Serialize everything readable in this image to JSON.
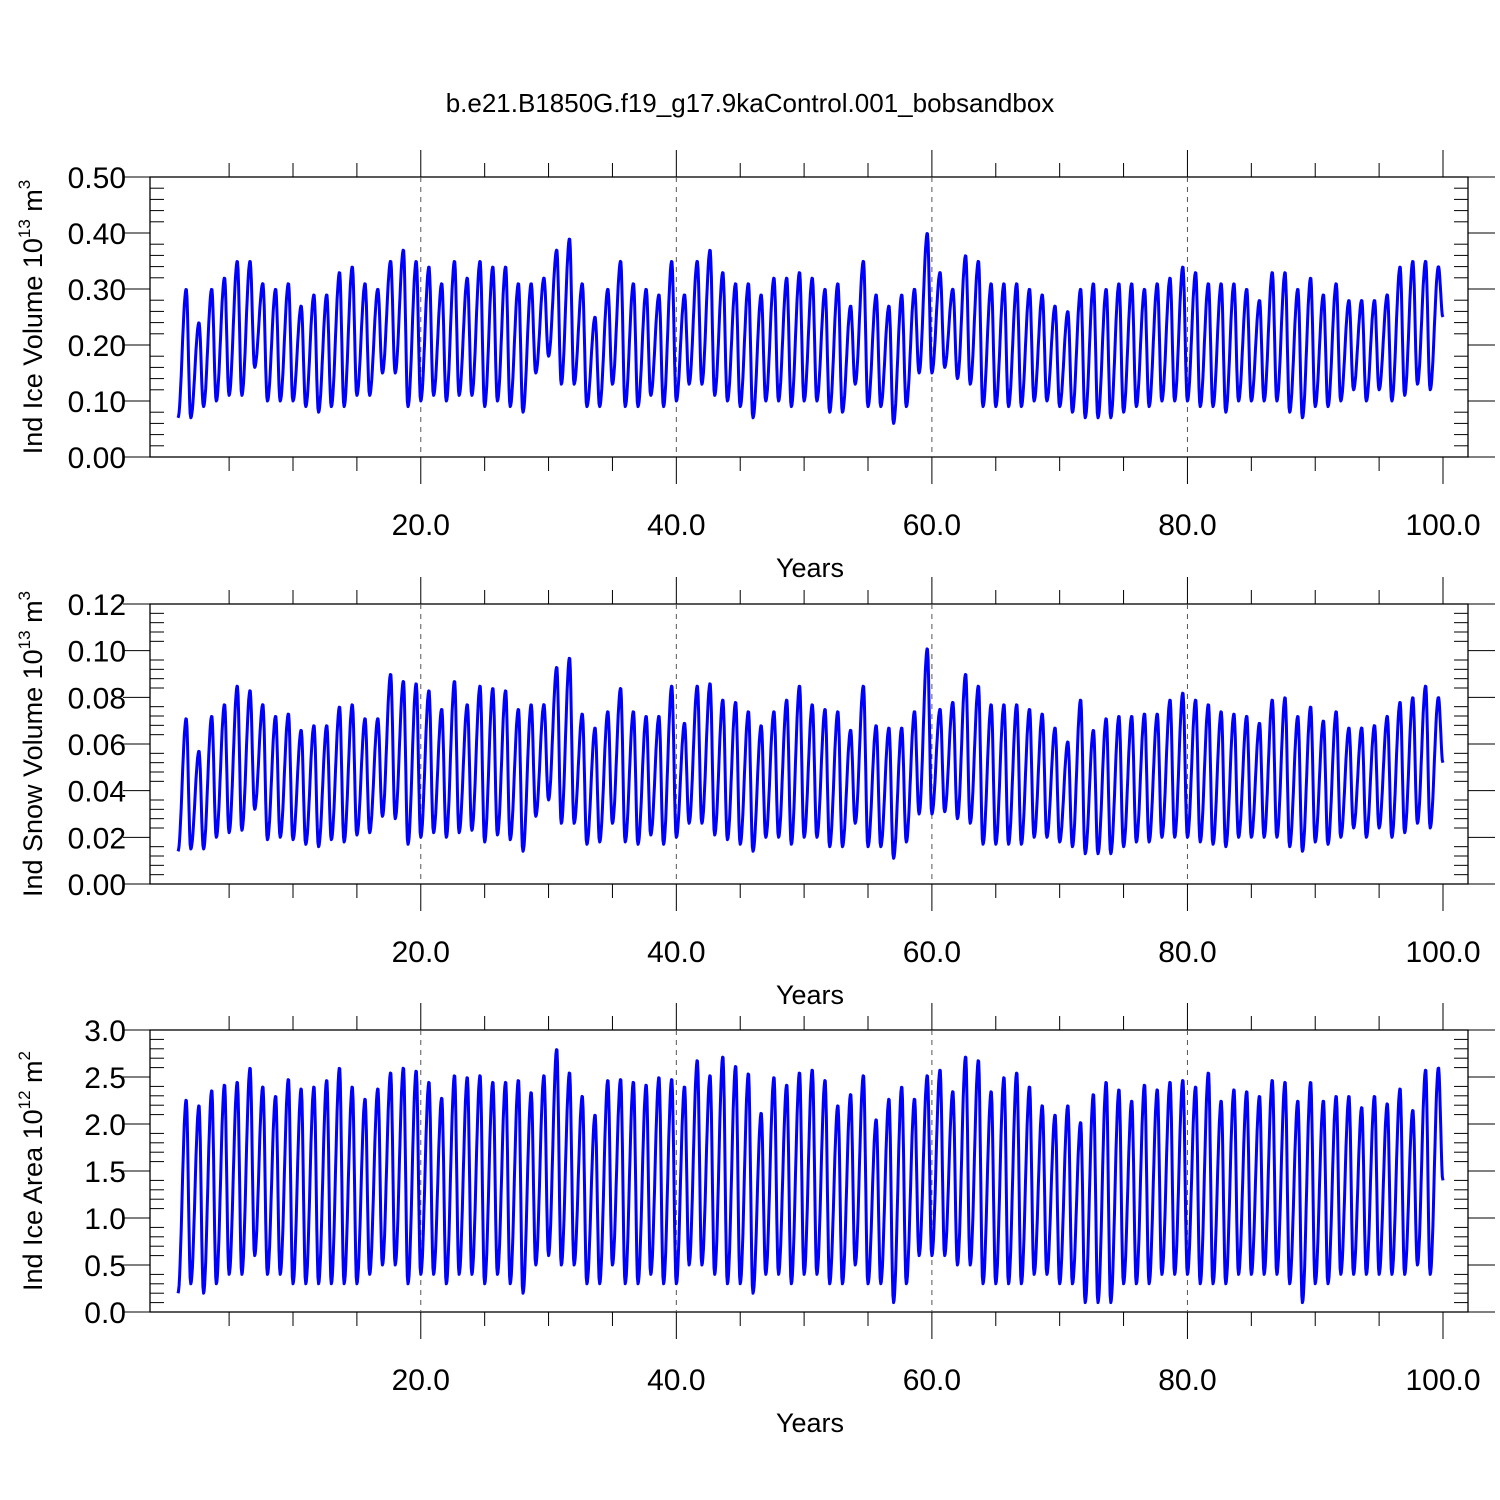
{
  "title": "b.e21.B1850G.f19_g17.9kaControl.001_bobsandbox",
  "chart_data": [
    {
      "type": "line",
      "name": "ice-volume",
      "ylabel": {
        "text": "Ind Ice Volume 10",
        "exp": "13",
        "unit": " m",
        "unit_exp": "3"
      },
      "xlabel": "Years",
      "xlim": [
        1,
        100
      ],
      "ylim": [
        0,
        0.5
      ],
      "grid": "x-dashed",
      "x_ticks": [
        "20.0",
        "40.0",
        "60.0",
        "80.0",
        "100.0"
      ],
      "y_ticks": [
        "0.00",
        "0.10",
        "0.20",
        "0.30",
        "0.40",
        "0.50"
      ],
      "color": "#0000ff",
      "seasonal_minima": [
        0.07,
        0.07,
        0.09,
        0.1,
        0.11,
        0.11,
        0.16,
        0.1,
        0.1,
        0.1,
        0.09,
        0.08,
        0.09,
        0.09,
        0.11,
        0.11,
        0.15,
        0.15,
        0.09,
        0.1,
        0.11,
        0.1,
        0.11,
        0.11,
        0.09,
        0.1,
        0.09,
        0.08,
        0.15,
        0.18,
        0.13,
        0.13,
        0.09,
        0.09,
        0.13,
        0.09,
        0.09,
        0.11,
        0.09,
        0.1,
        0.13,
        0.13,
        0.11,
        0.1,
        0.09,
        0.07,
        0.1,
        0.1,
        0.09,
        0.1,
        0.1,
        0.08,
        0.08,
        0.13,
        0.09,
        0.09,
        0.06,
        0.09,
        0.15,
        0.15,
        0.16,
        0.14,
        0.13,
        0.09,
        0.09,
        0.09,
        0.09,
        0.1,
        0.1,
        0.09,
        0.08,
        0.07,
        0.07,
        0.07,
        0.08,
        0.09,
        0.09,
        0.1,
        0.1,
        0.1,
        0.09,
        0.09,
        0.08,
        0.1,
        0.1,
        0.1,
        0.1,
        0.08,
        0.07,
        0.09,
        0.09,
        0.1,
        0.12,
        0.1,
        0.12,
        0.1,
        0.11,
        0.13,
        0.12,
        0.25
      ],
      "seasonal_maxima": [
        0.3,
        0.24,
        0.3,
        0.32,
        0.35,
        0.35,
        0.31,
        0.3,
        0.31,
        0.27,
        0.29,
        0.29,
        0.33,
        0.34,
        0.31,
        0.3,
        0.35,
        0.37,
        0.35,
        0.34,
        0.31,
        0.35,
        0.32,
        0.35,
        0.34,
        0.34,
        0.31,
        0.31,
        0.32,
        0.37,
        0.39,
        0.31,
        0.25,
        0.3,
        0.35,
        0.31,
        0.3,
        0.29,
        0.35,
        0.29,
        0.35,
        0.37,
        0.33,
        0.31,
        0.31,
        0.29,
        0.32,
        0.32,
        0.33,
        0.32,
        0.3,
        0.31,
        0.27,
        0.35,
        0.29,
        0.27,
        0.29,
        0.3,
        0.4,
        0.33,
        0.3,
        0.36,
        0.35,
        0.31,
        0.31,
        0.31,
        0.3,
        0.29,
        0.27,
        0.26,
        0.3,
        0.31,
        0.3,
        0.31,
        0.31,
        0.3,
        0.31,
        0.32,
        0.34,
        0.33,
        0.31,
        0.31,
        0.31,
        0.3,
        0.28,
        0.33,
        0.33,
        0.3,
        0.32,
        0.29,
        0.31,
        0.28,
        0.28,
        0.28,
        0.29,
        0.34,
        0.35,
        0.35,
        0.34,
        0.35
      ]
    },
    {
      "type": "line",
      "name": "snow-volume",
      "ylabel": {
        "text": "Ind Snow Volume 10",
        "exp": "13",
        "unit": " m",
        "unit_exp": "3"
      },
      "xlabel": "Years",
      "xlim": [
        1,
        100
      ],
      "ylim": [
        0,
        0.12
      ],
      "grid": "x-dashed",
      "x_ticks": [
        "20.0",
        "40.0",
        "60.0",
        "80.0",
        "100.0"
      ],
      "y_ticks": [
        "0.00",
        "0.02",
        "0.04",
        "0.06",
        "0.08",
        "0.10",
        "0.12"
      ],
      "color": "#0000ff",
      "seasonal_minima": [
        0.014,
        0.015,
        0.015,
        0.02,
        0.022,
        0.023,
        0.032,
        0.019,
        0.02,
        0.019,
        0.017,
        0.016,
        0.019,
        0.018,
        0.021,
        0.022,
        0.029,
        0.028,
        0.017,
        0.02,
        0.022,
        0.02,
        0.022,
        0.023,
        0.018,
        0.021,
        0.019,
        0.014,
        0.029,
        0.036,
        0.026,
        0.026,
        0.017,
        0.018,
        0.026,
        0.018,
        0.017,
        0.021,
        0.017,
        0.02,
        0.026,
        0.026,
        0.021,
        0.019,
        0.017,
        0.014,
        0.02,
        0.02,
        0.017,
        0.02,
        0.02,
        0.016,
        0.016,
        0.026,
        0.016,
        0.016,
        0.011,
        0.018,
        0.03,
        0.03,
        0.031,
        0.028,
        0.026,
        0.017,
        0.017,
        0.017,
        0.017,
        0.02,
        0.02,
        0.018,
        0.016,
        0.013,
        0.013,
        0.013,
        0.016,
        0.018,
        0.018,
        0.02,
        0.02,
        0.02,
        0.018,
        0.017,
        0.016,
        0.02,
        0.02,
        0.02,
        0.02,
        0.016,
        0.014,
        0.018,
        0.017,
        0.02,
        0.024,
        0.02,
        0.024,
        0.02,
        0.022,
        0.026,
        0.024,
        0.052
      ],
      "seasonal_maxima": [
        0.071,
        0.057,
        0.072,
        0.077,
        0.085,
        0.083,
        0.077,
        0.072,
        0.073,
        0.066,
        0.068,
        0.068,
        0.076,
        0.077,
        0.071,
        0.071,
        0.09,
        0.087,
        0.086,
        0.083,
        0.075,
        0.087,
        0.077,
        0.085,
        0.084,
        0.083,
        0.075,
        0.077,
        0.077,
        0.093,
        0.097,
        0.073,
        0.067,
        0.074,
        0.084,
        0.074,
        0.072,
        0.072,
        0.085,
        0.069,
        0.085,
        0.086,
        0.079,
        0.078,
        0.074,
        0.068,
        0.074,
        0.079,
        0.085,
        0.077,
        0.075,
        0.074,
        0.066,
        0.085,
        0.068,
        0.067,
        0.067,
        0.074,
        0.101,
        0.075,
        0.078,
        0.09,
        0.085,
        0.077,
        0.077,
        0.077,
        0.075,
        0.073,
        0.067,
        0.061,
        0.079,
        0.066,
        0.071,
        0.072,
        0.072,
        0.073,
        0.073,
        0.079,
        0.082,
        0.079,
        0.077,
        0.074,
        0.073,
        0.072,
        0.069,
        0.079,
        0.08,
        0.072,
        0.076,
        0.07,
        0.074,
        0.067,
        0.067,
        0.068,
        0.072,
        0.078,
        0.08,
        0.085,
        0.08,
        0.085
      ]
    },
    {
      "type": "line",
      "name": "ice-area",
      "ylabel": {
        "text": "Ind Ice Area 10",
        "exp": "12",
        "unit": " m",
        "unit_exp": "2"
      },
      "xlabel": "Years",
      "xlim": [
        1,
        100
      ],
      "ylim": [
        0,
        3
      ],
      "grid": "x-dashed",
      "x_ticks": [
        "20.0",
        "40.0",
        "60.0",
        "80.0",
        "100.0"
      ],
      "y_ticks": [
        "0.0",
        "0.5",
        "1.0",
        "1.5",
        "2.0",
        "2.5",
        "3.0"
      ],
      "color": "#0000ff",
      "seasonal_minima": [
        0.2,
        0.3,
        0.2,
        0.3,
        0.4,
        0.4,
        0.6,
        0.4,
        0.4,
        0.3,
        0.3,
        0.3,
        0.3,
        0.3,
        0.3,
        0.4,
        0.5,
        0.5,
        0.3,
        0.4,
        0.4,
        0.3,
        0.4,
        0.4,
        0.3,
        0.4,
        0.3,
        0.2,
        0.5,
        0.6,
        0.5,
        0.5,
        0.3,
        0.3,
        0.5,
        0.3,
        0.3,
        0.4,
        0.3,
        0.3,
        0.5,
        0.5,
        0.4,
        0.3,
        0.3,
        0.2,
        0.4,
        0.4,
        0.3,
        0.4,
        0.4,
        0.3,
        0.3,
        0.5,
        0.3,
        0.3,
        0.1,
        0.3,
        0.6,
        0.6,
        0.6,
        0.5,
        0.5,
        0.3,
        0.3,
        0.3,
        0.3,
        0.4,
        0.4,
        0.3,
        0.3,
        0.1,
        0.1,
        0.1,
        0.3,
        0.3,
        0.3,
        0.4,
        0.4,
        0.4,
        0.3,
        0.3,
        0.3,
        0.4,
        0.4,
        0.4,
        0.4,
        0.3,
        0.1,
        0.3,
        0.3,
        0.4,
        0.4,
        0.4,
        0.4,
        0.4,
        0.4,
        0.5,
        0.4,
        1.4
      ],
      "seasonal_maxima": [
        2.26,
        2.2,
        2.36,
        2.42,
        2.45,
        2.6,
        2.4,
        2.3,
        2.48,
        2.38,
        2.4,
        2.47,
        2.6,
        2.4,
        2.27,
        2.38,
        2.55,
        2.6,
        2.57,
        2.45,
        2.28,
        2.52,
        2.5,
        2.52,
        2.45,
        2.45,
        2.47,
        2.34,
        2.52,
        2.8,
        2.55,
        2.3,
        2.1,
        2.47,
        2.48,
        2.45,
        2.42,
        2.5,
        2.48,
        2.4,
        2.68,
        2.52,
        2.72,
        2.62,
        2.54,
        2.12,
        2.5,
        2.42,
        2.55,
        2.58,
        2.47,
        2.2,
        2.32,
        2.52,
        2.05,
        2.27,
        2.4,
        2.27,
        2.52,
        2.58,
        2.35,
        2.72,
        2.68,
        2.35,
        2.5,
        2.55,
        2.4,
        2.2,
        2.1,
        2.2,
        2.02,
        2.32,
        2.45,
        2.37,
        2.25,
        2.42,
        2.37,
        2.45,
        2.47,
        2.4,
        2.55,
        2.25,
        2.37,
        2.35,
        2.3,
        2.47,
        2.45,
        2.25,
        2.45,
        2.25,
        2.3,
        2.3,
        2.18,
        2.3,
        2.22,
        2.38,
        2.15,
        2.58,
        2.6,
        2.6
      ]
    }
  ]
}
